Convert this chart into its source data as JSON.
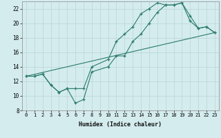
{
  "xlabel": "Humidex (Indice chaleur)",
  "bg_color": "#d4ecee",
  "grid_color": "#bdd8da",
  "line_color": "#2a7a68",
  "xlim": [
    -0.5,
    23.5
  ],
  "ylim": [
    8,
    23
  ],
  "xticks": [
    0,
    1,
    2,
    3,
    4,
    5,
    6,
    7,
    8,
    9,
    10,
    11,
    12,
    13,
    14,
    15,
    16,
    17,
    18,
    19,
    20,
    21,
    22,
    23
  ],
  "yticks": [
    8,
    10,
    12,
    14,
    16,
    18,
    20,
    22
  ],
  "series1_x": [
    0,
    1,
    2,
    3,
    4,
    5,
    6,
    7,
    8,
    10,
    11,
    12,
    13,
    14,
    15,
    16,
    17,
    18,
    19,
    20,
    21,
    22,
    23
  ],
  "series1_y": [
    12.7,
    12.7,
    13.0,
    11.5,
    10.5,
    11.0,
    9.0,
    9.5,
    13.3,
    14.0,
    15.5,
    15.5,
    17.5,
    18.5,
    20.0,
    21.5,
    22.5,
    22.5,
    22.8,
    21.0,
    19.3,
    19.5,
    18.7
  ],
  "series2_x": [
    0,
    1,
    2,
    3,
    4,
    5,
    6,
    7,
    8,
    10,
    11,
    12,
    13,
    14,
    15,
    16,
    17,
    18,
    19,
    20,
    21,
    22,
    23
  ],
  "series2_y": [
    12.7,
    12.7,
    13.0,
    11.5,
    10.5,
    11.0,
    11.0,
    11.0,
    14.0,
    15.0,
    17.5,
    18.5,
    19.5,
    21.3,
    22.0,
    22.8,
    22.5,
    22.5,
    22.8,
    20.3,
    19.3,
    19.5,
    18.7
  ],
  "series3_x": [
    0,
    23
  ],
  "series3_y": [
    12.7,
    18.7
  ]
}
